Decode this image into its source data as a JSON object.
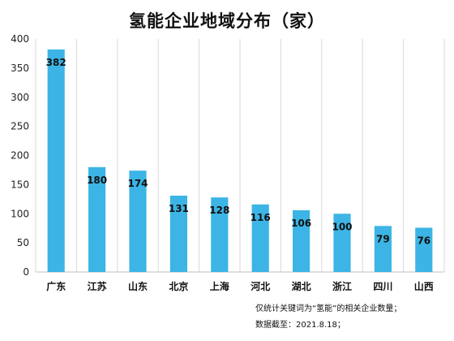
{
  "chart_data": {
    "type": "bar",
    "title": "氢能企业地域分布（家）",
    "categories": [
      "广东",
      "江苏",
      "山东",
      "北京",
      "上海",
      "河北",
      "湖北",
      "浙江",
      "四川",
      "山西"
    ],
    "values": [
      382,
      180,
      174,
      131,
      128,
      116,
      106,
      100,
      79,
      76
    ],
    "ylim": [
      0,
      400
    ],
    "yticks": [
      0,
      50,
      100,
      150,
      200,
      250,
      300,
      350,
      400
    ],
    "grid": "vertical",
    "bar_color": "#3cb4e5",
    "grid_color": "#d9d9d9"
  },
  "notes": [
    "仅统计关键词为“氢能”的相关企业数量；",
    "数据截至：2021.8.18；"
  ]
}
